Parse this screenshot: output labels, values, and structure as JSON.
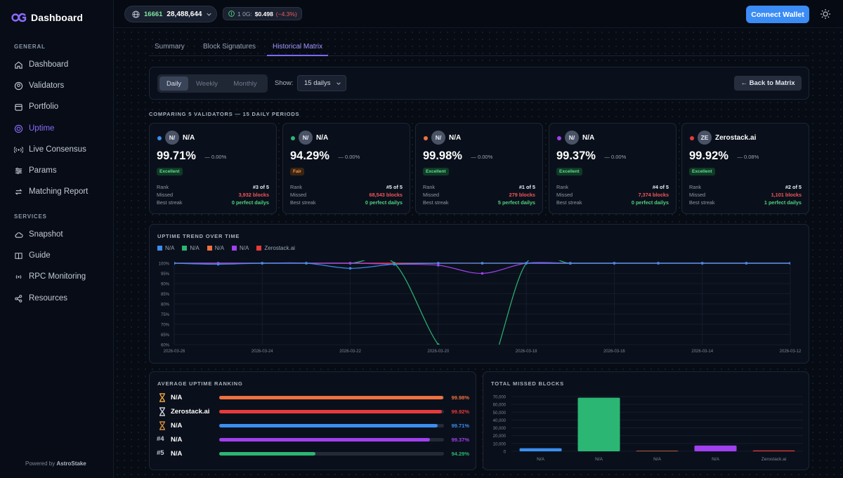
{
  "app": {
    "title": "Dashboard"
  },
  "sidebar": {
    "sections": [
      {
        "label": "GENERAL"
      },
      {
        "label": "SERVICES"
      }
    ],
    "items": [
      {
        "label": "Dashboard",
        "icon": "home-icon"
      },
      {
        "label": "Validators",
        "icon": "user-circle-icon"
      },
      {
        "label": "Portfolio",
        "icon": "calendar-icon"
      },
      {
        "label": "Uptime",
        "icon": "target-icon",
        "active": true
      },
      {
        "label": "Live Consensus",
        "icon": "signal-icon"
      },
      {
        "label": "Params",
        "icon": "sliders-icon"
      },
      {
        "label": "Matching Report",
        "icon": "arrows-icon"
      },
      {
        "label": "Snapshot",
        "icon": "cloud-icon"
      },
      {
        "label": "Guide",
        "icon": "book-icon"
      },
      {
        "label": "RPC Monitoring",
        "icon": "radio-icon"
      },
      {
        "label": "Resources",
        "icon": "share-icon"
      }
    ],
    "powered_prefix": "Powered by",
    "powered_brand": "AstroStake"
  },
  "topbar": {
    "block_height": "16661",
    "count": "28,488,644",
    "price_label": "1 0G:",
    "price_value": "$0.498",
    "price_change": "(−4.3%)",
    "connect_label": "Connect Wallet"
  },
  "tabs": [
    {
      "label": "Summary"
    },
    {
      "label": "Block Signatures"
    },
    {
      "label": "Historical Matrix",
      "active": true
    }
  ],
  "controls": {
    "periods": [
      "Daily",
      "Weekly",
      "Monthly"
    ],
    "active_period": "Daily",
    "show_label": "Show:",
    "show_value": "15 dailys",
    "back_label": "← Back to Matrix"
  },
  "comparing_label": "COMPARING 5 VALIDATORS — 15 DAILY PERIODS",
  "cards": [
    {
      "color": "#3b8ef0",
      "avatar": "N/",
      "name": "N/A",
      "pct": "99.71%",
      "change": "— 0.00%",
      "badge": "Excellent",
      "badge_class": "excellent",
      "rank_label": "Rank",
      "rank": "#3 of 5",
      "missed_label": "Missed",
      "missed": "3,932 blocks",
      "streak_label": "Best streak",
      "streak": "0 perfect dailys"
    },
    {
      "color": "#2bb673",
      "avatar": "N/",
      "name": "N/A",
      "pct": "94.29%",
      "change": "— 0.00%",
      "badge": "Fair",
      "badge_class": "fair",
      "rank_label": "Rank",
      "rank": "#5 of 5",
      "missed_label": "Missed",
      "missed": "68,543 blocks",
      "streak_label": "Best streak",
      "streak": "0 perfect dailys"
    },
    {
      "color": "#f07040",
      "avatar": "N/",
      "name": "N/A",
      "pct": "99.98%",
      "change": "— 0.00%",
      "badge": "Excellent",
      "badge_class": "excellent",
      "rank_label": "Rank",
      "rank": "#1 of 5",
      "missed_label": "Missed",
      "missed": "279 blocks",
      "streak_label": "Best streak",
      "streak": "5 perfect dailys"
    },
    {
      "color": "#a040f0",
      "avatar": "N/",
      "name": "N/A",
      "pct": "99.37%",
      "change": "— 0.00%",
      "badge": "Excellent",
      "badge_class": "excellent",
      "rank_label": "Rank",
      "rank": "#4 of 5",
      "missed_label": "Missed",
      "missed": "7,374 blocks",
      "streak_label": "Best streak",
      "streak": "0 perfect dailys"
    },
    {
      "color": "#e83a3a",
      "avatar": "ZE",
      "name": "Zerostack.ai",
      "pct": "99.92%",
      "change": "— 0.08%",
      "badge": "Excellent",
      "badge_class": "excellent",
      "rank_label": "Rank",
      "rank": "#2 of 5",
      "missed_label": "Missed",
      "missed": "1,101 blocks",
      "streak_label": "Best streak",
      "streak": "1 perfect dailys"
    }
  ],
  "ranking": {
    "title": "AVERAGE UPTIME RANKING",
    "rows": [
      {
        "rank_icon": "hourglass-gold-icon",
        "rank": "",
        "name": "N/A",
        "value": 99.98,
        "label": "99.98%",
        "color": "#f07040"
      },
      {
        "rank_icon": "hourglass-silver-icon",
        "rank": "",
        "name": "Zerostack.ai",
        "value": 99.92,
        "label": "99.92%",
        "color": "#e83a3a"
      },
      {
        "rank_icon": "hourglass-bronze-icon",
        "rank": "",
        "name": "N/A",
        "value": 99.71,
        "label": "99.71%",
        "color": "#3b8ef0"
      },
      {
        "rank_icon": "",
        "rank": "#4",
        "name": "N/A",
        "value": 99.37,
        "label": "99.37%",
        "color": "#a040f0"
      },
      {
        "rank_icon": "",
        "rank": "#5",
        "name": "N/A",
        "value": 94.29,
        "label": "94.29%",
        "color": "#2bb673"
      }
    ]
  },
  "chart_data": [
    {
      "type": "line",
      "title": "UPTIME TREND OVER TIME",
      "x": [
        "2026-03-26",
        "2026-03-25",
        "2026-03-24",
        "2026-03-23",
        "2026-03-22",
        "2026-03-21",
        "2026-03-20",
        "2026-03-19",
        "2026-03-18",
        "2026-03-17",
        "2026-03-16",
        "2026-03-15",
        "2026-03-14",
        "2026-03-13",
        "2026-03-12"
      ],
      "x_tick_labels": [
        "2026-03-26",
        "2026-03-24",
        "2026-03-22",
        "2026-03-20",
        "2026-03-18",
        "2026-03-16",
        "2026-03-14",
        "2026-03-12"
      ],
      "y_ticks": [
        "100%",
        "95%",
        "90%",
        "85%",
        "80%",
        "75%",
        "70%",
        "65%",
        "60%"
      ],
      "ylim": [
        60,
        100
      ],
      "grid": true,
      "legend": "top-left",
      "series": [
        {
          "name": "N/A",
          "color": "#3b8ef0",
          "values": [
            100,
            99.5,
            100,
            100,
            97.5,
            99.5,
            100,
            100,
            100,
            100,
            100,
            100,
            100,
            100,
            100
          ]
        },
        {
          "name": "N/A",
          "color": "#2bb673",
          "values": [
            100,
            100,
            100,
            100,
            100,
            100,
            60,
            40,
            100,
            100,
            100,
            100,
            100,
            100,
            100
          ]
        },
        {
          "name": "N/A",
          "color": "#f07040",
          "values": [
            100,
            100,
            100,
            100,
            100,
            100,
            100,
            100,
            100,
            100,
            100,
            100,
            100,
            100,
            100
          ]
        },
        {
          "name": "N/A",
          "color": "#a040f0",
          "values": [
            100,
            100,
            100,
            100,
            100,
            99.5,
            99,
            95,
            100,
            100,
            100,
            100,
            100,
            100,
            100
          ]
        },
        {
          "name": "Zerostack.ai",
          "color": "#e83a3a",
          "values": [
            100,
            100,
            100,
            100,
            100,
            100,
            100,
            100,
            100,
            99.9,
            100,
            100,
            100,
            100,
            100
          ]
        }
      ]
    },
    {
      "type": "bar",
      "title": "TOTAL MISSED BLOCKS",
      "categories": [
        "N/A",
        "N/A",
        "N/A",
        "N/A",
        "Zerostack.ai"
      ],
      "values": [
        3932,
        68543,
        279,
        7374,
        1101
      ],
      "colors": [
        "#3b8ef0",
        "#2bb673",
        "#f07040",
        "#a040f0",
        "#e83a3a"
      ],
      "y_ticks": [
        "70,000",
        "60,000",
        "50,000",
        "40,000",
        "30,000",
        "20,000",
        "10,000",
        "0"
      ],
      "ylim": [
        0,
        70000
      ]
    }
  ]
}
